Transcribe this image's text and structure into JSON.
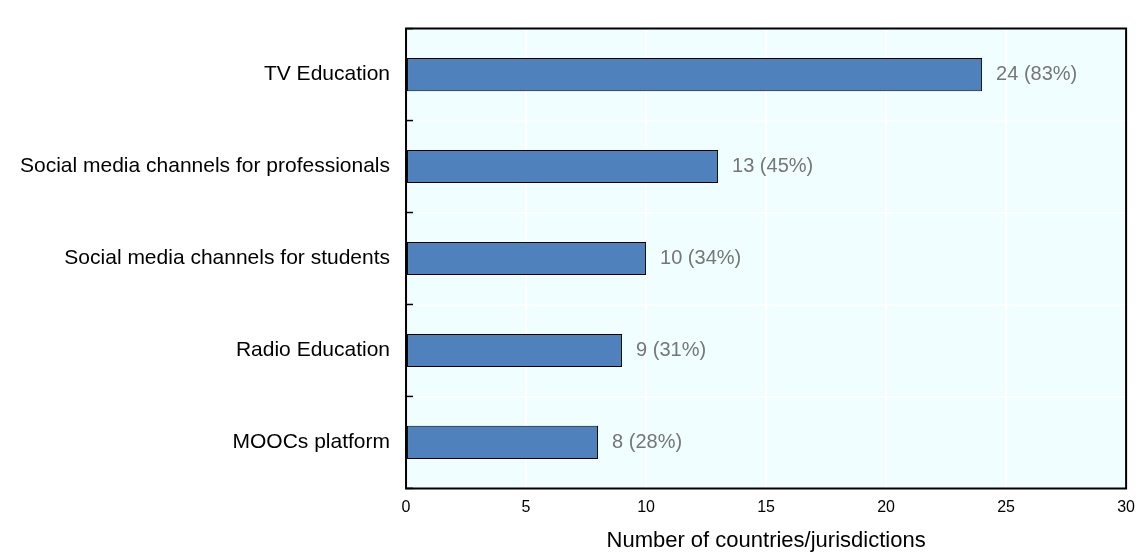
{
  "chart_data": {
    "type": "bar",
    "orientation": "horizontal",
    "xlabel": "Number of countries/jurisdictions",
    "categories": [
      "TV Education",
      "Social media channels for professionals",
      "Social media channels for students",
      "Radio Education",
      "MOOCs platform"
    ],
    "values": [
      24,
      13,
      10,
      9,
      8
    ],
    "color": "#4f81bd",
    "value_labels": [
      "24 (83%)",
      "13 (45%)",
      "10 (34%)",
      "9 (31%)",
      "8 (28%)"
    ],
    "xlim": [
      0,
      30
    ],
    "xticks": [
      0,
      5,
      10,
      15,
      20,
      25,
      30
    ],
    "grid": true
  }
}
